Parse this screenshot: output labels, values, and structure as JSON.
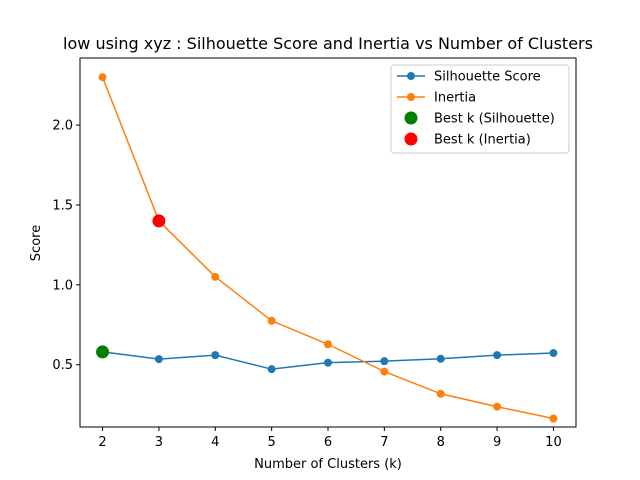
{
  "chart_data": {
    "type": "line",
    "title": "low using xyz : Silhouette Score and Inertia vs Number of Clusters",
    "xlabel": "Number of Clusters (k)",
    "ylabel": "Score",
    "x": [
      2,
      3,
      4,
      5,
      6,
      7,
      8,
      9,
      10
    ],
    "xlim": [
      1.6,
      10.4
    ],
    "ylim": [
      0.11,
      2.42
    ],
    "xticks": [
      2,
      3,
      4,
      5,
      6,
      7,
      8,
      9,
      10
    ],
    "yticks": [
      0.5,
      1.0,
      1.5,
      2.0
    ],
    "ytick_labels": [
      "0.5",
      "1.0",
      "1.5",
      "2.0"
    ],
    "grid": false,
    "legend_position": "top-right",
    "series": [
      {
        "name": "Silhouette Score",
        "color": "#1f77b4",
        "values": [
          0.58,
          0.535,
          0.56,
          0.472,
          0.513,
          0.522,
          0.537,
          0.56,
          0.573
        ]
      },
      {
        "name": "Inertia",
        "color": "#ff7f0e",
        "values": [
          2.3,
          1.4,
          1.05,
          0.775,
          0.628,
          0.457,
          0.318,
          0.237,
          0.163
        ]
      }
    ],
    "highlights": [
      {
        "name": "Best k (Silhouette)",
        "color": "#008000",
        "x": 2,
        "y": 0.58
      },
      {
        "name": "Best k (Inertia)",
        "color": "#ff0000",
        "x": 3,
        "y": 1.4
      }
    ]
  }
}
